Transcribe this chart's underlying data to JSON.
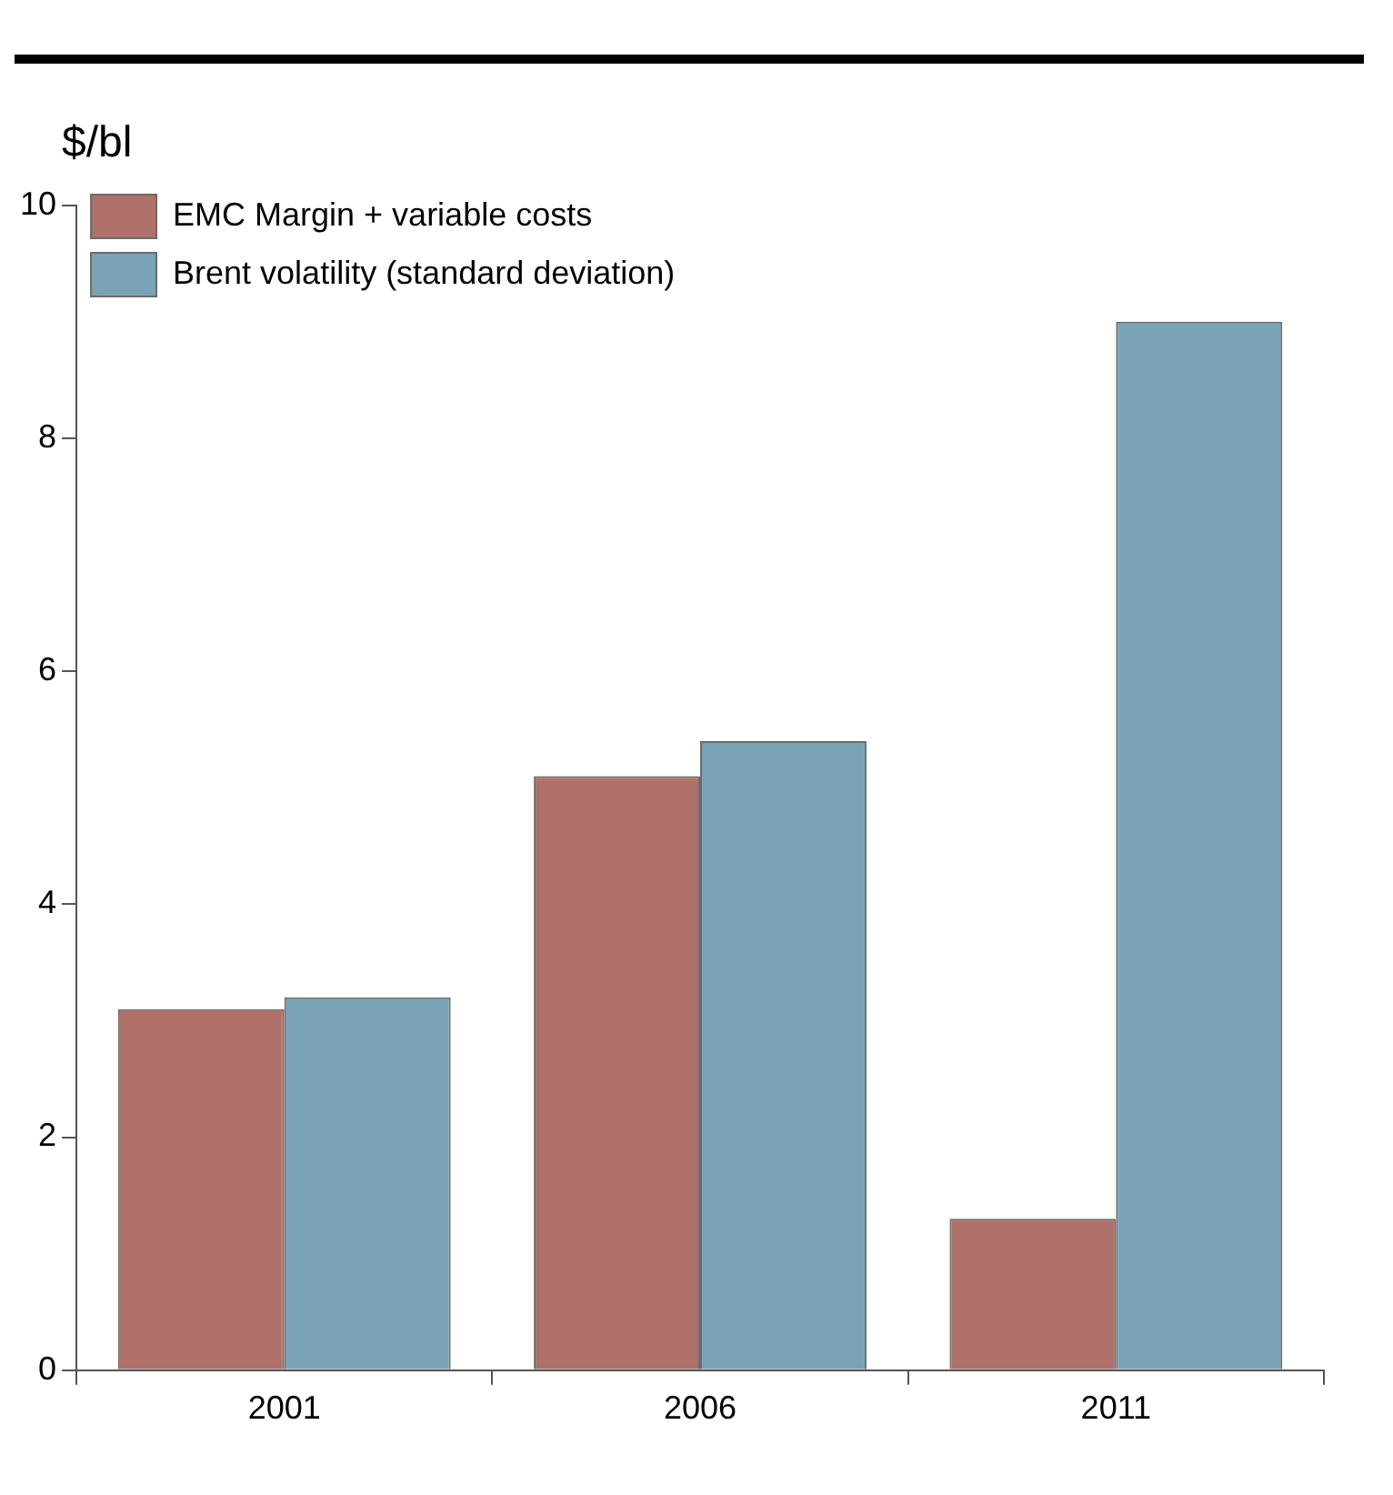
{
  "chart_data": {
    "type": "bar",
    "ylabel": "$/bl",
    "categories": [
      "2001",
      "2006",
      "2011"
    ],
    "series": [
      {
        "name": "EMC Margin + variable costs",
        "color": "#b0716a",
        "values": [
          3.1,
          5.1,
          1.3
        ]
      },
      {
        "name": "Brent volatility (standard deviation)",
        "color": "#7aa4b5",
        "values": [
          3.2,
          5.4,
          9.0
        ]
      }
    ],
    "ylim": [
      0,
      10
    ],
    "yticks": [
      0,
      2,
      4,
      6,
      8,
      10
    ],
    "grid": false,
    "legend": "top left"
  }
}
